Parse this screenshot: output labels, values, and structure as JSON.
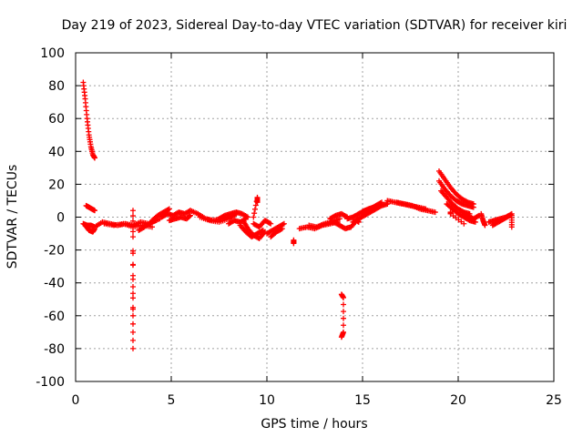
{
  "chart_data": {
    "type": "scatter",
    "title": "Day 219 of 2023, Sidereal Day-to-day VTEC variation (SDTVAR) for receiver kiri",
    "xlabel": "GPS time / hours",
    "ylabel": "SDTVAR / TECUs",
    "xlim": [
      0,
      25
    ],
    "ylim": [
      -100,
      100
    ],
    "xticks": [
      "0",
      "5",
      "10",
      "15",
      "20",
      "25"
    ],
    "yticks": [
      "100",
      "80",
      "60",
      "40",
      "20",
      "0",
      "-20",
      "-40",
      "-60",
      "-80",
      "-100"
    ],
    "grid": true,
    "marker": "plus",
    "color": "#ff0000",
    "segments": [
      {
        "x": [
          0.4,
          0.5,
          0.6,
          0.7,
          0.8,
          0.9,
          1.0
        ],
        "y": [
          82,
          72,
          60,
          50,
          43,
          38,
          36
        ]
      },
      {
        "x": [
          0.55,
          0.7,
          0.85,
          1.0
        ],
        "y": [
          7,
          6,
          5,
          4
        ]
      },
      {
        "x": [
          0.5,
          0.7,
          0.9,
          1.0
        ],
        "y": [
          -5,
          -8,
          -9,
          -7
        ]
      },
      {
        "x": [
          0.4,
          0.6,
          0.8,
          1.0,
          1.4,
          1.8,
          2.2,
          2.6,
          3.0,
          3.4,
          3.8,
          4.2
        ],
        "y": [
          -4,
          -5,
          -5,
          -6,
          -3,
          -4,
          -5,
          -4,
          -5,
          -3,
          -4,
          -2
        ]
      },
      {
        "x": [
          1.5,
          2.0,
          2.5,
          3.0,
          3.5,
          4.0
        ],
        "y": [
          -4,
          -5,
          -4,
          -6,
          -5,
          -6
        ]
      },
      {
        "x": [
          3.0,
          3.0,
          3.0,
          3.0
        ],
        "y": [
          4,
          -12,
          -55,
          -80
        ]
      },
      {
        "x": [
          3.0,
          3.0
        ],
        "y": [
          -22,
          -56
        ]
      },
      {
        "x": [
          3.3,
          3.6,
          4.0,
          4.4,
          4.8
        ],
        "y": [
          -8,
          -6,
          -3,
          -1,
          4
        ]
      },
      {
        "x": [
          4.0,
          4.3,
          4.6,
          4.9
        ],
        "y": [
          -2,
          1,
          3,
          5
        ]
      },
      {
        "x": [
          4.5,
          4.8,
          5.1,
          5.4,
          5.7,
          6.0
        ],
        "y": [
          0,
          2,
          1,
          3,
          2,
          4
        ]
      },
      {
        "x": [
          4.9,
          5.2,
          5.5,
          5.8,
          6.0
        ],
        "y": [
          -2,
          -1,
          0,
          -1,
          1
        ]
      },
      {
        "x": [
          6.0,
          6.4,
          6.8,
          7.2,
          7.6,
          8.0
        ],
        "y": [
          4,
          2,
          -1,
          -2,
          -1,
          0
        ]
      },
      {
        "x": [
          6.5,
          7.0,
          7.5,
          8.0,
          8.4
        ],
        "y": [
          0,
          -2,
          -3,
          -1,
          2
        ]
      },
      {
        "x": [
          7.5,
          7.8,
          8.1,
          8.4,
          8.7,
          9.0
        ],
        "y": [
          -1,
          1,
          2,
          3,
          2,
          0
        ]
      },
      {
        "x": [
          8.0,
          8.3,
          8.6,
          8.9
        ],
        "y": [
          -4,
          -2,
          -3,
          -1
        ]
      },
      {
        "x": [
          8.6,
          8.9,
          9.2,
          9.5,
          9.8
        ],
        "y": [
          -5,
          -9,
          -12,
          -10,
          -8
        ]
      },
      {
        "x": [
          8.8,
          9.0,
          9.3,
          9.6,
          9.9
        ],
        "y": [
          -3,
          -7,
          -11,
          -13,
          -9
        ]
      },
      {
        "x": [
          9.3,
          9.6,
          9.9,
          10.2
        ],
        "y": [
          -4,
          -6,
          -2,
          -4
        ]
      },
      {
        "x": [
          9.5,
          9.5,
          9.3
        ],
        "y": [
          9,
          12,
          0
        ]
      },
      {
        "x": [
          10.0,
          10.3,
          10.6,
          10.9
        ],
        "y": [
          -10,
          -8,
          -6,
          -4
        ]
      },
      {
        "x": [
          10.2,
          10.5,
          10.8
        ],
        "y": [
          -12,
          -9,
          -7
        ]
      },
      {
        "x": [
          11.4,
          11.4
        ],
        "y": [
          -14,
          -16
        ]
      },
      {
        "x": [
          11.7,
          12.1,
          12.5,
          12.9,
          13.3,
          13.7
        ],
        "y": [
          -7,
          -6,
          -7,
          -5,
          -4,
          -3
        ]
      },
      {
        "x": [
          12.2,
          12.6,
          13.0,
          13.4,
          13.8
        ],
        "y": [
          -5,
          -6,
          -4,
          -3,
          -1
        ]
      },
      {
        "x": [
          13.3,
          13.6,
          13.9,
          14.2
        ],
        "y": [
          -1,
          1,
          2,
          0
        ]
      },
      {
        "x": [
          13.5,
          13.8,
          14.1,
          14.4,
          14.7,
          14.8
        ],
        "y": [
          -3,
          -5,
          -7,
          -6,
          -2,
          -3
        ]
      },
      {
        "x": [
          13.9,
          14.0,
          14.0,
          13.9
        ],
        "y": [
          -47,
          -49,
          -70,
          -73
        ]
      },
      {
        "x": [
          14.2,
          14.5,
          14.8,
          15.1,
          15.4,
          15.7,
          16.0
        ],
        "y": [
          -1,
          0,
          2,
          4,
          5,
          7,
          9
        ]
      },
      {
        "x": [
          14.5,
          14.8,
          15.1,
          15.4,
          15.7,
          16.0,
          16.3
        ],
        "y": [
          -3,
          -1,
          1,
          3,
          5,
          7,
          8
        ]
      },
      {
        "x": [
          15.0,
          15.3,
          15.6,
          15.9
        ],
        "y": [
          3,
          5,
          6,
          8
        ]
      },
      {
        "x": [
          16.3,
          16.7,
          17.1,
          17.5,
          17.9,
          18.3
        ],
        "y": [
          10,
          9,
          8,
          7,
          6,
          5
        ]
      },
      {
        "x": [
          16.8,
          17.2,
          17.6,
          18.0,
          18.4,
          18.8
        ],
        "y": [
          9,
          8,
          7,
          5,
          4,
          3
        ]
      },
      {
        "x": [
          19.0,
          19.3,
          19.6,
          19.9,
          20.2,
          20.5,
          20.8
        ],
        "y": [
          28,
          23,
          18,
          14,
          11,
          9,
          8
        ]
      },
      {
        "x": [
          19.0,
          19.3,
          19.6,
          19.9,
          20.2,
          20.5,
          20.8
        ],
        "y": [
          22,
          17,
          13,
          10,
          8,
          7,
          6
        ]
      },
      {
        "x": [
          19.1,
          19.4,
          19.7,
          20.0,
          20.3,
          20.6
        ],
        "y": [
          16,
          12,
          8,
          5,
          3,
          2
        ]
      },
      {
        "x": [
          19.4,
          19.7,
          20.0,
          20.3,
          20.6,
          20.9
        ],
        "y": [
          8,
          5,
          2,
          0,
          -2,
          -3
        ]
      },
      {
        "x": [
          19.6,
          19.6,
          20.3
        ],
        "y": [
          3,
          2,
          -4
        ]
      },
      {
        "x": [
          20.2,
          20.5,
          20.8,
          21.1
        ],
        "y": [
          3,
          1,
          -1,
          1
        ]
      },
      {
        "x": [
          21.2,
          21.3,
          21.4
        ],
        "y": [
          2,
          -2,
          -5
        ]
      },
      {
        "x": [
          21.6,
          21.9,
          22.2,
          22.5,
          22.8
        ],
        "y": [
          -3,
          -2,
          -1,
          0,
          2
        ]
      },
      {
        "x": [
          21.8,
          22.1,
          22.4,
          22.7
        ],
        "y": [
          -5,
          -3,
          -1,
          1
        ]
      },
      {
        "x": [
          22.8,
          22.8
        ],
        "y": [
          -6,
          1
        ]
      }
    ]
  }
}
